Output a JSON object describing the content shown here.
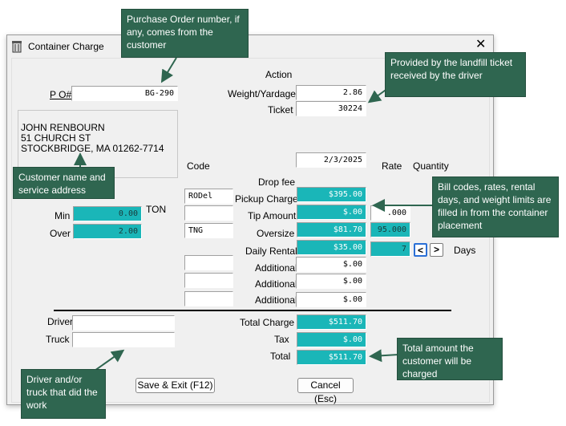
{
  "window": {
    "title": "Container Charge",
    "close_label": "✕"
  },
  "header": {
    "action_label": "Action"
  },
  "po": {
    "label": "P O#",
    "value": "BG-290"
  },
  "weight": {
    "label": "Weight/Yardage",
    "value": "2.86"
  },
  "ticket": {
    "label": "Ticket",
    "value": "30224"
  },
  "customer": {
    "name": "JOHN RENBOURN",
    "street": "51 CHURCH ST",
    "city": "STOCKBRIDGE, MA  01262-7714"
  },
  "date": {
    "value": "2/3/2025"
  },
  "columns": {
    "code": "Code",
    "rate": "Rate",
    "quantity": "Quantity"
  },
  "charges": {
    "drop_fee": {
      "label": "Drop fee"
    },
    "pickup": {
      "label": "Pickup Charge",
      "code": "RODel",
      "amount": "$395.00"
    },
    "tip": {
      "label": "Tip Amount",
      "code": "",
      "amount": "$.00",
      "rate": ".000"
    },
    "oversize": {
      "label": "Oversize",
      "code": "TNG",
      "amount": "$81.70",
      "rate": "95.000"
    },
    "daily_rental": {
      "label": "Daily Rental",
      "amount": "$35.00",
      "days": "7",
      "days_label": "Days",
      "dec_label": "<",
      "inc_label": ">"
    },
    "additional": [
      {
        "label": "Additional",
        "amount": "$.00"
      },
      {
        "label": "Additional",
        "amount": "$.00"
      },
      {
        "label": "Additional",
        "amount": "$.00"
      }
    ]
  },
  "weight_limits": {
    "unit": "TON",
    "min_label": "Min",
    "min_value": "0.00",
    "over_label": "Over",
    "over_value": "2.00"
  },
  "driver": {
    "label": "Driver",
    "value": ""
  },
  "truck": {
    "label": "Truck",
    "value": ""
  },
  "totals": {
    "total_charge_label": "Total Charge",
    "total_charge": "$511.70",
    "tax_label": "Tax",
    "tax": "$.00",
    "total_label": "Total",
    "total": "$511.70"
  },
  "buttons": {
    "save": "Save & Exit (F12)",
    "cancel": "Cancel (Esc)"
  },
  "callouts": {
    "po": "Purchase Order number, if any, comes from the customer",
    "ticket": "Provided by the landfill ticket received by the driver",
    "customer": "Customer name and service address",
    "bill": "Bill codes, rates, rental days, and weight limits are filled in from the container placement",
    "total": "Total amount the customer will be charged",
    "driver": "Driver and/or truck that did the work"
  },
  "colors": {
    "teal": "#1ab6b8",
    "callout": "#2f6650"
  }
}
